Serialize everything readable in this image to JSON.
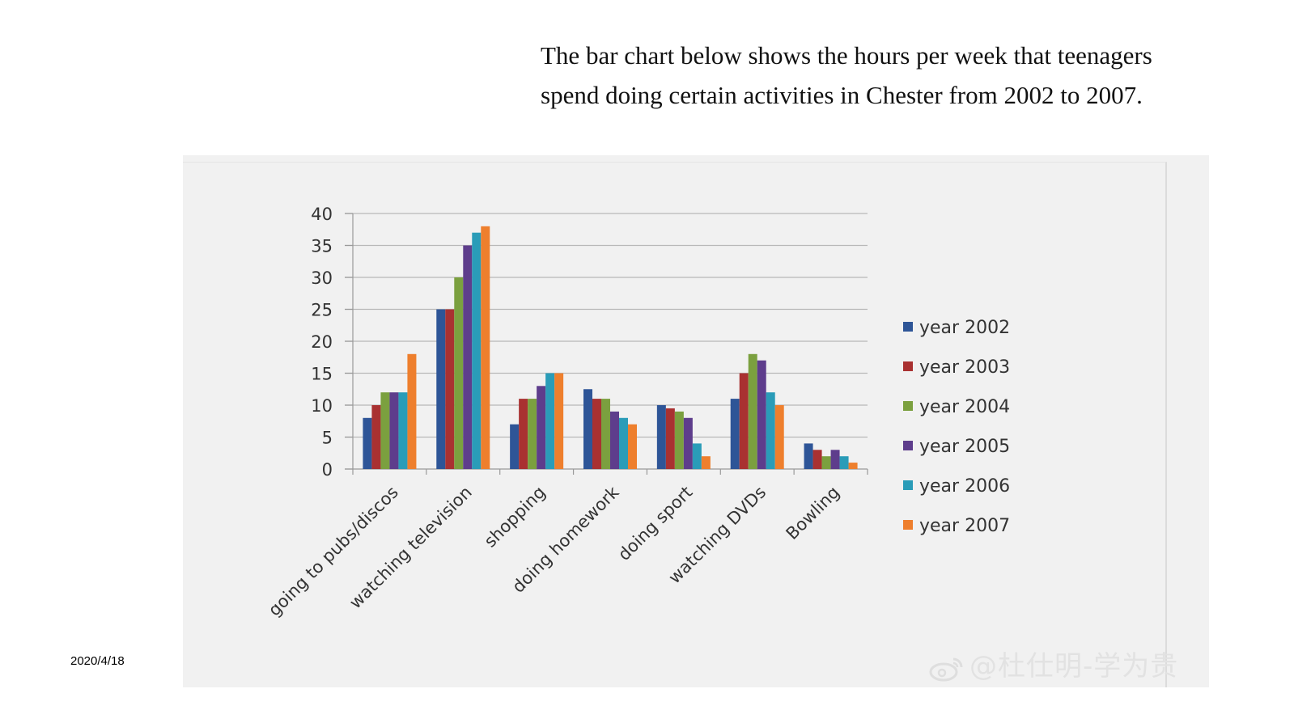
{
  "slide": {
    "title": "The bar chart below shows the hours per week that teenagers spend doing certain activities in Chester from 2002 to 2007.",
    "date": "2020/4/18",
    "watermark": "@杜仕明-学为贵"
  },
  "chart_data": {
    "type": "bar",
    "title": "",
    "xlabel": "",
    "ylabel": "",
    "ylim": [
      0,
      40
    ],
    "yticks": [
      0,
      5,
      10,
      15,
      20,
      25,
      30,
      35,
      40
    ],
    "grid": true,
    "legend_position": "right",
    "categories": [
      "going to pubs/discos",
      "watching television",
      "shopping",
      "doing homework",
      "doing sport",
      "watching DVDs",
      "Bowling"
    ],
    "series": [
      {
        "name": "year 2002",
        "color": "#2e5597",
        "values": [
          8,
          25,
          7,
          12.5,
          10,
          11,
          4
        ]
      },
      {
        "name": "year 2003",
        "color": "#a93131",
        "values": [
          10,
          25,
          11,
          11,
          9.5,
          15,
          3
        ]
      },
      {
        "name": "year 2004",
        "color": "#7ba03f",
        "values": [
          12,
          30,
          11,
          11,
          9,
          18,
          2
        ]
      },
      {
        "name": "year 2005",
        "color": "#5e3d8c",
        "values": [
          12,
          35,
          13,
          9,
          8,
          17,
          3
        ]
      },
      {
        "name": "year 2006",
        "color": "#2a9cb8",
        "values": [
          12,
          37,
          15,
          8,
          4,
          12,
          2
        ]
      },
      {
        "name": "year 2007",
        "color": "#ee7f2d",
        "values": [
          18,
          38,
          15,
          7,
          2,
          10,
          1
        ]
      }
    ]
  }
}
